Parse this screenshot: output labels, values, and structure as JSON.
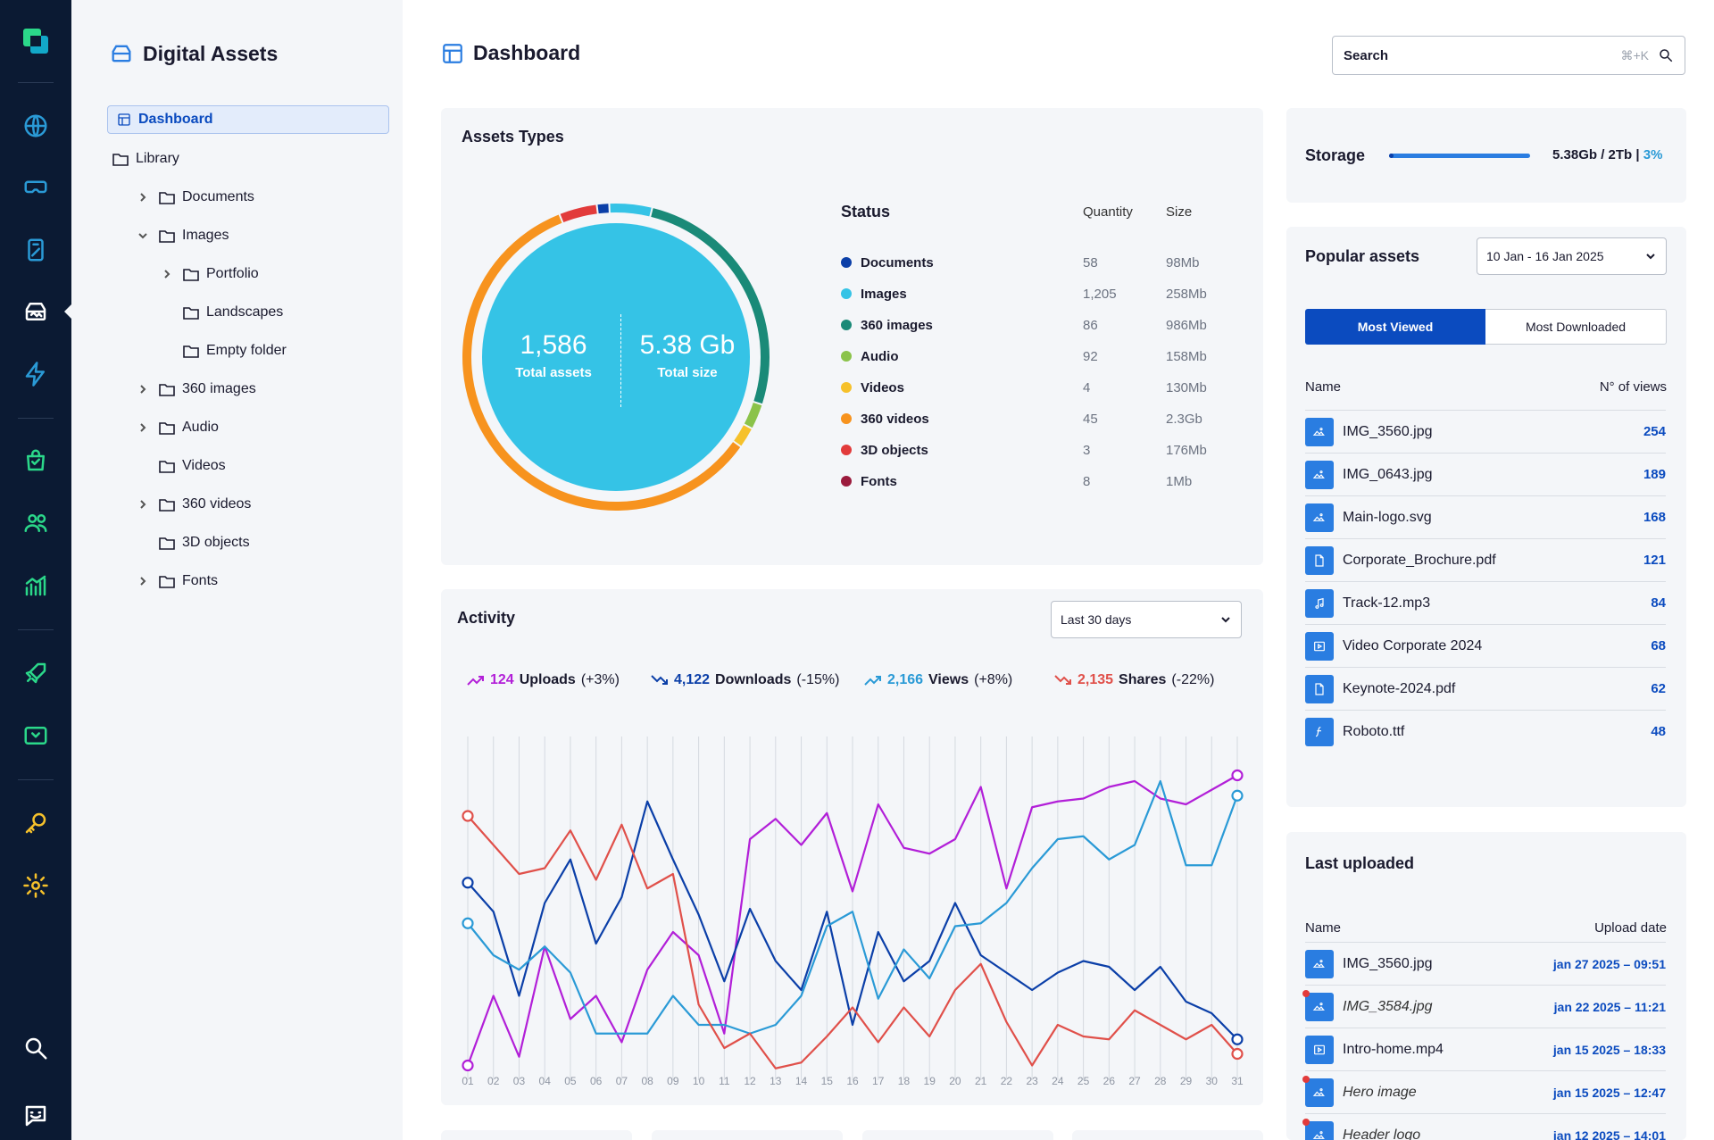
{
  "app": {
    "title": "Digital Assets",
    "page_title": "Dashboard"
  },
  "colors": {
    "rail_bg": "#0b1a33",
    "accent": "#2a7de1",
    "brand_blue": "#0b4bbf",
    "panel_bg": "#f4f6f9"
  },
  "rail": {
    "icons": [
      "app-logo",
      "globe-icon",
      "vr-headset-icon",
      "tablet-icon",
      "assets-icon",
      "lightning-icon",
      "shopping-bag-icon",
      "users-icon",
      "analytics-icon",
      "rocket-icon",
      "media-icon",
      "key-icon",
      "gear-icon",
      "search-icon",
      "feedback-icon"
    ],
    "active": "assets-icon"
  },
  "tree": {
    "active_label": "Dashboard",
    "items": [
      {
        "label": "Library",
        "expanded": null
      },
      {
        "label": "Documents",
        "expanded": false
      },
      {
        "label": "Images",
        "expanded": true
      },
      {
        "label": "Portfolio",
        "expanded": false
      },
      {
        "label": "Landscapes",
        "expanded": null
      },
      {
        "label": "Empty folder",
        "expanded": null
      },
      {
        "label": "360 images",
        "expanded": false
      },
      {
        "label": "Audio",
        "expanded": false
      },
      {
        "label": "Videos",
        "expanded": null
      },
      {
        "label": "360 videos",
        "expanded": false
      },
      {
        "label": "3D objects",
        "expanded": null
      },
      {
        "label": "Fonts",
        "expanded": false
      }
    ]
  },
  "search": {
    "placeholder": "Search",
    "shortcut": "⌘+K"
  },
  "asset_types": {
    "title": "Assets Types",
    "total_assets_value": "1,586",
    "total_assets_label": "Total assets",
    "total_size_value": "5.38 Gb",
    "total_size_label": "Total size",
    "headers": {
      "status": "Status",
      "quantity": "Quantity",
      "size": "Size"
    },
    "rows": [
      {
        "name": "Documents",
        "quantity": "58",
        "size": "98Mb",
        "color": "#0b3fa8"
      },
      {
        "name": "Images",
        "quantity": "1,205",
        "size": "258Mb",
        "color": "#35c3e6"
      },
      {
        "name": "360 images",
        "quantity": "86",
        "size": "986Mb",
        "color": "#1a8a78"
      },
      {
        "name": "Audio",
        "quantity": "92",
        "size": "158Mb",
        "color": "#8bc34a"
      },
      {
        "name": "Videos",
        "quantity": "4",
        "size": "130Mb",
        "color": "#f6c12b"
      },
      {
        "name": "360 videos",
        "quantity": "45",
        "size": "2.3Gb",
        "color": "#f7931e"
      },
      {
        "name": "3D objects",
        "quantity": "3",
        "size": "176Mb",
        "color": "#e23b3b"
      },
      {
        "name": "Fonts",
        "quantity": "8",
        "size": "1Mb",
        "color": "#9b1b3d"
      }
    ],
    "donut_segments": [
      {
        "name": "Documents",
        "share": 0.013,
        "color": "#0b3fa8"
      },
      {
        "name": "Images",
        "share": 0.045,
        "color": "#35c3e6"
      },
      {
        "name": "360 images",
        "share": 0.262,
        "color": "#1a8a78"
      },
      {
        "name": "Audio",
        "share": 0.027,
        "color": "#8bc34a"
      },
      {
        "name": "Videos",
        "share": 0.022,
        "color": "#f6c12b"
      },
      {
        "name": "360 videos",
        "share": 0.591,
        "color": "#f7931e"
      },
      {
        "name": "3D objects",
        "share": 0.04,
        "color": "#e23b3b"
      }
    ]
  },
  "activity": {
    "title": "Activity",
    "range": "Last 30 days",
    "metrics": [
      {
        "value": "124",
        "label": "Uploads",
        "change": "(+3%)",
        "color": "#b21fd8",
        "trend": "up"
      },
      {
        "value": "4,122",
        "label": "Downloads",
        "change": "(-15%)",
        "color": "#0b3fa8",
        "trend": "down"
      },
      {
        "value": "2,166",
        "label": "Views",
        "change": "(+8%)",
        "color": "#2a9ad6",
        "trend": "up"
      },
      {
        "value": "2,135",
        "label": "Shares",
        "change": "(-22%)",
        "color": "#e0504a",
        "trend": "down"
      }
    ]
  },
  "chart_data": {
    "type": "line",
    "categories": [
      "01",
      "02",
      "03",
      "04",
      "05",
      "06",
      "07",
      "08",
      "09",
      "10",
      "11",
      "12",
      "13",
      "14",
      "15",
      "16",
      "17",
      "18",
      "19",
      "20",
      "21",
      "22",
      "23",
      "24",
      "25",
      "26",
      "27",
      "28",
      "29",
      "30",
      "31"
    ],
    "grid": "vertical",
    "series": [
      {
        "name": "Uploads",
        "color": "#b21fd8",
        "values": [
          2,
          26,
          5,
          43,
          18,
          26,
          10,
          35,
          48,
          40,
          13,
          80,
          87,
          78,
          89,
          62,
          92,
          77,
          75,
          80,
          98,
          63,
          91,
          93,
          94,
          98,
          100,
          94,
          92,
          97,
          102
        ]
      },
      {
        "name": "Downloads",
        "color": "#0b3fa8",
        "values": [
          65,
          55,
          26,
          58,
          73,
          44,
          60,
          93,
          73,
          54,
          31,
          56,
          38,
          28,
          55,
          16,
          48,
          31,
          38,
          58,
          40,
          34,
          28,
          34,
          38,
          36,
          28,
          36,
          24,
          20,
          11
        ]
      },
      {
        "name": "Views",
        "color": "#2a9ad6",
        "values": [
          51,
          40,
          35,
          43,
          34,
          13,
          13,
          13,
          26,
          16,
          16,
          13,
          16,
          26,
          50,
          55,
          25,
          42,
          32,
          50,
          51,
          58,
          70,
          80,
          81,
          73,
          78,
          100,
          71,
          71,
          95
        ]
      },
      {
        "name": "Shares",
        "color": "#e0504a",
        "values": [
          88,
          78,
          68,
          70,
          83,
          66,
          85,
          63,
          68,
          23,
          8,
          13,
          1,
          3,
          12,
          22,
          10,
          22,
          12,
          28,
          37,
          17,
          2,
          16,
          12,
          11,
          21,
          16,
          11,
          16,
          6
        ]
      }
    ]
  },
  "storage": {
    "title": "Storage",
    "used_text": "5.38Gb / 2Tb",
    "separator": "|",
    "percent_text": "3%",
    "fraction": 0.03
  },
  "popular": {
    "title": "Popular assets",
    "range": "10 Jan - 16 Jan 2025",
    "tabs": [
      {
        "label": "Most Viewed",
        "active": true
      },
      {
        "label": "Most Downloaded",
        "active": false
      }
    ],
    "col_name": "Name",
    "col_views": "N° of views",
    "rows": [
      {
        "name": "IMG_3560.jpg",
        "views": "254",
        "icon": "image-icon"
      },
      {
        "name": "IMG_0643.jpg",
        "views": "189",
        "icon": "image-icon"
      },
      {
        "name": "Main-logo.svg",
        "views": "168",
        "icon": "image-icon"
      },
      {
        "name": "Corporate_Brochure.pdf",
        "views": "121",
        "icon": "document-icon"
      },
      {
        "name": "Track-12.mp3",
        "views": "84",
        "icon": "audio-icon"
      },
      {
        "name": "Video Corporate 2024",
        "views": "68",
        "icon": "video-icon"
      },
      {
        "name": "Keynote-2024.pdf",
        "views": "62",
        "icon": "document-icon"
      },
      {
        "name": "Roboto.ttf",
        "views": "48",
        "icon": "font-icon"
      }
    ]
  },
  "last_uploaded": {
    "title": "Last uploaded",
    "col_name": "Name",
    "col_date": "Upload date",
    "rows": [
      {
        "name": "IMG_3560.jpg",
        "date": "jan 27 2025 – 09:51",
        "icon": "image-icon",
        "flag": false,
        "italic": false
      },
      {
        "name": "IMG_3584.jpg",
        "date": "jan 22 2025 – 11:21",
        "icon": "image-icon",
        "flag": true,
        "italic": true
      },
      {
        "name": "Intro-home.mp4",
        "date": "jan 15 2025 – 18:33",
        "icon": "video-icon",
        "flag": false,
        "italic": false
      },
      {
        "name": "Hero image",
        "date": "jan 15 2025 – 12:47",
        "icon": "image-icon",
        "flag": true,
        "italic": true
      },
      {
        "name": "Header logo",
        "date": "jan 12 2025 – 14:01",
        "icon": "image-icon",
        "flag": true,
        "italic": true
      }
    ]
  }
}
